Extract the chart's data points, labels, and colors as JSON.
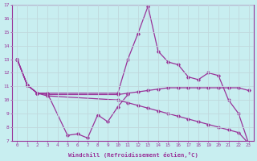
{
  "xlabel": "Windchill (Refroidissement éolien,°C)",
  "bg_color": "#c8eef0",
  "line_color": "#993399",
  "grid_color": "#c0d8dc",
  "ylim": [
    7,
    17
  ],
  "xlim": [
    -0.5,
    23.5
  ],
  "yticks": [
    7,
    8,
    9,
    10,
    11,
    12,
    13,
    14,
    15,
    16,
    17
  ],
  "xticks": [
    0,
    1,
    2,
    3,
    4,
    5,
    6,
    7,
    8,
    9,
    10,
    11,
    12,
    13,
    14,
    15,
    16,
    17,
    18,
    19,
    20,
    21,
    22,
    23
  ],
  "series": [
    {
      "x": [
        0,
        1,
        2,
        3,
        10,
        11,
        12,
        13,
        14,
        15,
        16,
        17,
        18,
        19,
        20,
        21,
        22,
        23
      ],
      "y": [
        13,
        11.1,
        10.5,
        10.5,
        10.5,
        13.0,
        14.9,
        16.9,
        13.6,
        12.8,
        12.6,
        11.7,
        11.5,
        12.0,
        11.8,
        10.0,
        9.0,
        6.8
      ]
    },
    {
      "x": [
        0,
        1,
        2,
        3,
        5,
        6,
        7,
        8,
        9,
        10,
        11
      ],
      "y": [
        13,
        11.1,
        10.5,
        10.5,
        7.4,
        7.5,
        7.2,
        8.9,
        8.4,
        9.5,
        10.4
      ]
    },
    {
      "x": [
        0,
        1,
        2,
        3,
        10,
        11,
        12,
        13,
        14,
        15,
        16,
        17,
        18,
        19,
        20,
        21,
        22,
        23
      ],
      "y": [
        13,
        11.1,
        10.5,
        10.4,
        10.4,
        10.5,
        10.6,
        10.7,
        10.8,
        10.9,
        10.9,
        10.9,
        10.9,
        10.9,
        10.9,
        10.9,
        10.9,
        10.7
      ]
    },
    {
      "x": [
        0,
        1,
        2,
        3,
        10,
        11,
        12,
        13,
        14,
        15,
        16,
        17,
        18,
        19,
        20,
        21,
        22,
        23
      ],
      "y": [
        13,
        11.1,
        10.5,
        10.3,
        10.0,
        9.8,
        9.6,
        9.4,
        9.2,
        9.0,
        8.8,
        8.6,
        8.4,
        8.2,
        8.0,
        7.8,
        7.6,
        6.8
      ]
    }
  ]
}
